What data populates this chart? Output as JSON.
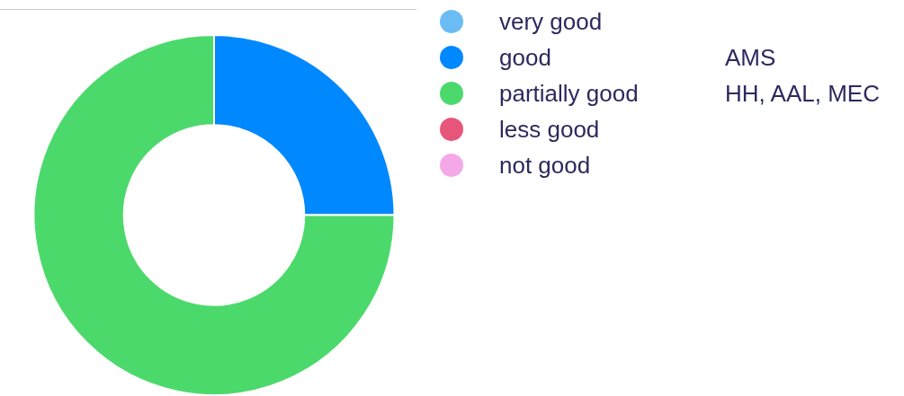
{
  "chart_data": {
    "type": "donut",
    "categories": [
      "very good",
      "good",
      "partially good",
      "less good",
      "not good"
    ],
    "values": [
      0,
      25,
      75,
      0,
      0
    ],
    "colors": [
      "#6bbcf5",
      "#0088ff",
      "#4cd96b",
      "#e8557a",
      "#f5a8e8"
    ],
    "legend": "right",
    "annotations": [
      {
        "text": "AMS",
        "x": "good"
      },
      {
        "text": "HH, AAL, MEC",
        "x": "partially good"
      }
    ]
  }
}
